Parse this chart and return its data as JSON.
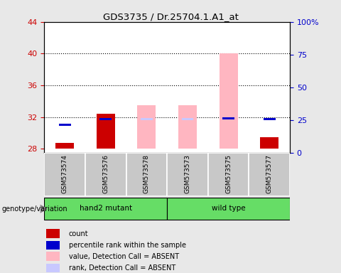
{
  "title": "GDS3735 / Dr.25704.1.A1_at",
  "samples": [
    "GSM573574",
    "GSM573576",
    "GSM573578",
    "GSM573573",
    "GSM573575",
    "GSM573577"
  ],
  "ylim_left": [
    27.5,
    44
  ],
  "ylim_right": [
    0,
    100
  ],
  "yticks_left": [
    28,
    32,
    36,
    40,
    44
  ],
  "ytick_labels_right": [
    "0",
    "25",
    "50",
    "75",
    "100%"
  ],
  "left_color": "#CC0000",
  "right_color": "#0000CC",
  "count_values": [
    28.8,
    32.4,
    null,
    null,
    null,
    29.5
  ],
  "rank_values": [
    30.9,
    31.6,
    null,
    null,
    31.7,
    31.6
  ],
  "absent_value_values": [
    null,
    null,
    33.5,
    33.5,
    40.0,
    null
  ],
  "absent_rank_values": [
    null,
    null,
    31.6,
    31.6,
    31.7,
    null
  ],
  "bar_width": 0.45,
  "dotted_yticks": [
    32,
    36,
    40
  ],
  "bg_color": "#e8e8e8",
  "plot_bg": "#ffffff",
  "gray_box": "#c8c8c8",
  "green_color": "#66dd66",
  "red_bar": "#cc0000",
  "blue_bar": "#0000cc",
  "pink_bar": "#ffb6c1",
  "lavender_bar": "#c8c8ff",
  "legend_colors": [
    "#cc0000",
    "#0000cc",
    "#ffb6c1",
    "#c8c8ff"
  ],
  "legend_labels": [
    "count",
    "percentile rank within the sample",
    "value, Detection Call = ABSENT",
    "rank, Detection Call = ABSENT"
  ]
}
